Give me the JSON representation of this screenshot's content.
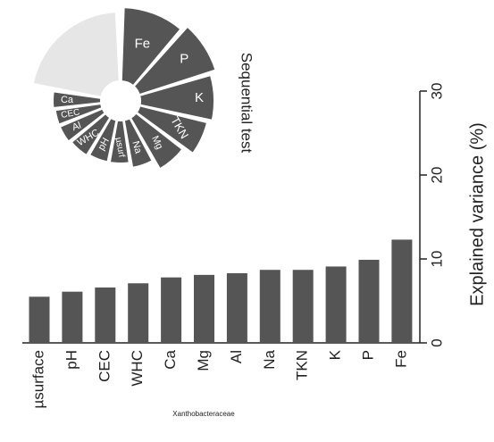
{
  "chart_data": [
    {
      "type": "bar",
      "y_label": "Explained variance (%)",
      "categories": [
        "µsurface",
        "pH",
        "CEC",
        "WHC",
        "Ca",
        "Mg",
        "Al",
        "Na",
        "TKN",
        "K",
        "P",
        "Fe"
      ],
      "values": [
        5.5,
        6.1,
        6.6,
        7.1,
        7.8,
        8.1,
        8.3,
        8.7,
        8.7,
        9.1,
        9.9,
        12.3
      ],
      "color": "#555555",
      "ylim": [
        0,
        30
      ],
      "yticks": [
        0,
        10,
        20,
        30
      ],
      "annotation": "Xanthobacteraceae"
    },
    {
      "type": "polar",
      "title": "Sequential test",
      "categories": [
        "Fe",
        "P",
        "K",
        "TKN",
        "Mg",
        "Na",
        "µsurf",
        "pH",
        "WHC",
        "Al",
        "CEC",
        "Ca",
        null
      ],
      "color": "#555555"
    }
  ]
}
